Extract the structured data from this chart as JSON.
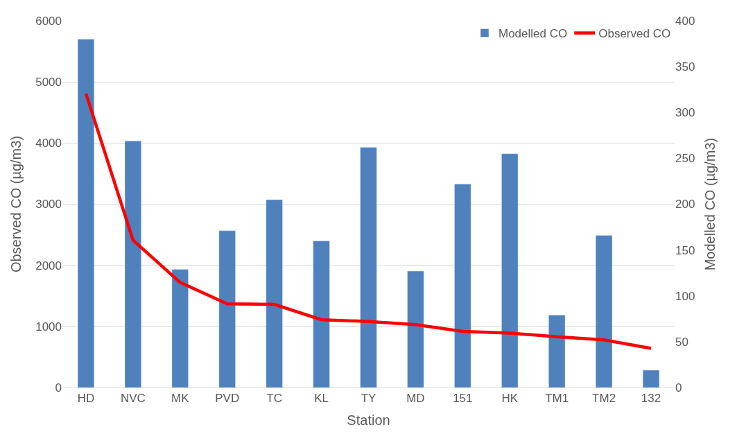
{
  "chart_data": {
    "type": "bar",
    "xlabel": "Station",
    "ylabel": "Observed CO (µg/m3)",
    "y2label": "Modelled CO (µg/m3)",
    "categories": [
      "HD",
      "NVC",
      "MK",
      "PVD",
      "TC",
      "KL",
      "TY",
      "MD",
      "151",
      "HK",
      "TM1",
      "TM2",
      "132"
    ],
    "series": [
      {
        "name": "Modelled CO",
        "axis": "y2",
        "color": "#4f81bd",
        "values": [
          380,
          269,
          129,
          171,
          205,
          160,
          262,
          127,
          222,
          255,
          79,
          166,
          19
        ]
      },
      {
        "name": "Observed CO",
        "type": "line",
        "color": "#ff0000",
        "values": [
          4810,
          2410,
          1720,
          1370,
          1360,
          1110,
          1080,
          1030,
          920,
          890,
          830,
          780,
          640
        ]
      }
    ],
    "ylim": [
      0,
      6000
    ],
    "yticks": [
      0,
      1000,
      2000,
      3000,
      4000,
      5000,
      6000
    ],
    "y2lim": [
      0,
      400
    ],
    "y2ticks": [
      0,
      50,
      100,
      150,
      200,
      250,
      300,
      350,
      400
    ],
    "grid": "y",
    "legend": "top right",
    "marker": "none",
    "line_style": "solid"
  }
}
